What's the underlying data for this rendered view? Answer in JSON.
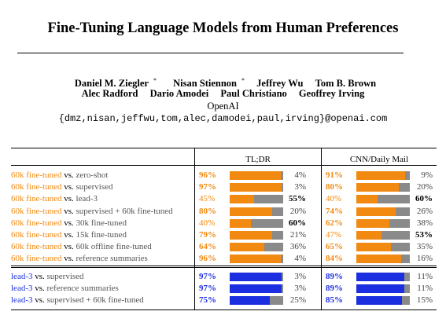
{
  "paper": {
    "title": "Fine-Tuning Language Models from Human Preferences",
    "authors_row1": [
      {
        "name": "Daniel M. Ziegler",
        "mark": "*"
      },
      {
        "name": "Nisan Stiennon",
        "mark": "*"
      },
      {
        "name": "Jeffrey Wu",
        "mark": ""
      },
      {
        "name": "Tom B. Brown",
        "mark": ""
      }
    ],
    "authors_row2": [
      {
        "name": "Alec Radford",
        "mark": ""
      },
      {
        "name": "Dario Amodei",
        "mark": ""
      },
      {
        "name": "Paul Christiano",
        "mark": ""
      },
      {
        "name": "Geoffrey Irving",
        "mark": ""
      }
    ],
    "affiliation": "OpenAI",
    "email": "{dmz,nisan,jeffwu,tom,alec,damodei,paul,irving}@openai.com"
  },
  "table": {
    "columns": [
      "TL;DR",
      "CNN/Daily Mail"
    ],
    "colors": {
      "orange": "#f28a12",
      "blue": "#1c2fe0",
      "gray": "#8a8a8a"
    },
    "rows": [
      {
        "left": "60k fine-tuned",
        "vs": "vs.",
        "right": "zero-shot",
        "color": "orange",
        "tldr": {
          "win": "96%",
          "lose": "4%",
          "w": 96,
          "lose_bold": false
        },
        "cnn": {
          "win": "91%",
          "lose": "9%",
          "w": 91,
          "lose_bold": false
        }
      },
      {
        "left": "60k fine-tuned",
        "vs": "vs.",
        "right": "supervised",
        "color": "orange",
        "tldr": {
          "win": "97%",
          "lose": "3%",
          "w": 97,
          "lose_bold": false
        },
        "cnn": {
          "win": "80%",
          "lose": "20%",
          "w": 80,
          "lose_bold": false
        }
      },
      {
        "left": "60k fine-tuned",
        "vs": "vs.",
        "right": "lead-3",
        "color": "orange",
        "tldr": {
          "win": "45%",
          "lose": "55%",
          "w": 45,
          "lose_bold": true
        },
        "cnn": {
          "win": "40%",
          "lose": "60%",
          "w": 40,
          "lose_bold": true
        }
      },
      {
        "left": "60k fine-tuned",
        "vs": "vs.",
        "right": "supervised + 60k fine-tuned",
        "color": "orange",
        "tldr": {
          "win": "80%",
          "lose": "20%",
          "w": 80,
          "lose_bold": false
        },
        "cnn": {
          "win": "74%",
          "lose": "26%",
          "w": 74,
          "lose_bold": false
        }
      },
      {
        "left": "60k fine-tuned",
        "vs": "vs.",
        "right": "30k fine-tuned",
        "color": "orange",
        "tldr": {
          "win": "40%",
          "lose": "60%",
          "w": 40,
          "lose_bold": true
        },
        "cnn": {
          "win": "62%",
          "lose": "38%",
          "w": 62,
          "lose_bold": false
        }
      },
      {
        "left": "60k fine-tuned",
        "vs": "vs.",
        "right": "15k fine-tuned",
        "color": "orange",
        "tldr": {
          "win": "79%",
          "lose": "21%",
          "w": 79,
          "lose_bold": false
        },
        "cnn": {
          "win": "47%",
          "lose": "53%",
          "w": 47,
          "lose_bold": true
        }
      },
      {
        "left": "60k fine-tuned",
        "vs": "vs.",
        "right": "60k offline fine-tuned",
        "color": "orange",
        "tldr": {
          "win": "64%",
          "lose": "36%",
          "w": 64,
          "lose_bold": false
        },
        "cnn": {
          "win": "65%",
          "lose": "35%",
          "w": 65,
          "lose_bold": false
        }
      },
      {
        "left": "60k fine-tuned",
        "vs": "vs.",
        "right": "reference summaries",
        "color": "orange",
        "tldr": {
          "win": "96%",
          "lose": "4%",
          "w": 96,
          "lose_bold": false
        },
        "cnn": {
          "win": "84%",
          "lose": "16%",
          "w": 84,
          "lose_bold": false
        }
      },
      {
        "left": "lead-3",
        "vs": "vs.",
        "right": "supervised",
        "color": "blue",
        "tldr": {
          "win": "97%",
          "lose": "3%",
          "w": 97,
          "lose_bold": false
        },
        "cnn": {
          "win": "89%",
          "lose": "11%",
          "w": 89,
          "lose_bold": false
        }
      },
      {
        "left": "lead-3",
        "vs": "vs.",
        "right": "reference summaries",
        "color": "blue",
        "tldr": {
          "win": "97%",
          "lose": "3%",
          "w": 97,
          "lose_bold": false
        },
        "cnn": {
          "win": "89%",
          "lose": "11%",
          "w": 89,
          "lose_bold": false
        }
      },
      {
        "left": "lead-3",
        "vs": "vs.",
        "right": "supervised + 60k fine-tuned",
        "color": "blue",
        "tldr": {
          "win": "75%",
          "lose": "25%",
          "w": 75,
          "lose_bold": false
        },
        "cnn": {
          "win": "85%",
          "lose": "15%",
          "w": 85,
          "lose_bold": false
        }
      }
    ]
  }
}
